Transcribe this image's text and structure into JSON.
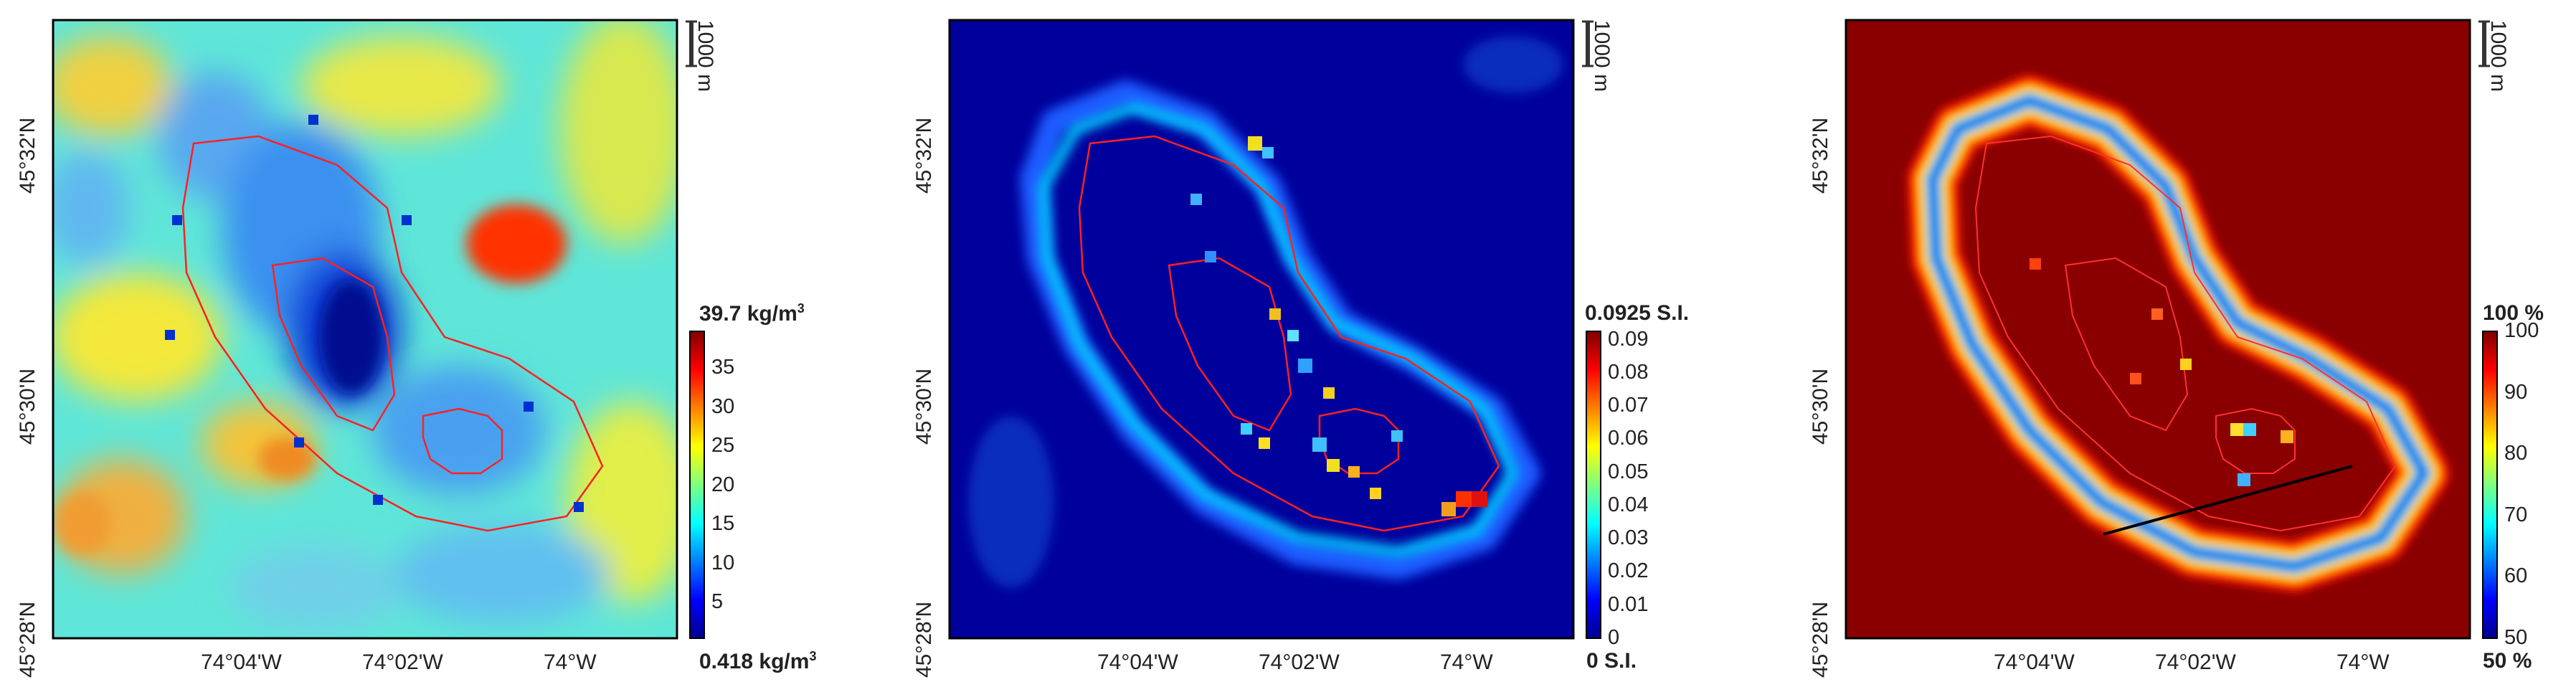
{
  "panels": [
    {
      "id": "density",
      "lat_labels": [
        "45°32'N",
        "45°30'N",
        "45°28'N"
      ],
      "lon_labels": [
        "74°04'W",
        "74°02'W",
        "74°W"
      ],
      "scale_bar": "1000 m",
      "colorbar": {
        "max_label": "39.7 kg/m",
        "max_sup": "3",
        "min_label": "0.418 kg/m",
        "min_sup": "3",
        "ticks": [
          "35",
          "30",
          "25",
          "20",
          "15",
          "10",
          "5"
        ],
        "tick_values": [
          35,
          30,
          25,
          20,
          15,
          10,
          5
        ],
        "range": [
          0.418,
          39.7
        ]
      }
    },
    {
      "id": "susceptibility",
      "lat_labels": [
        "45°32'N",
        "45°30'N",
        "45°28'N"
      ],
      "lon_labels": [
        "74°04'W",
        "74°02'W",
        "74°W"
      ],
      "scale_bar": "1000 m",
      "colorbar": {
        "max_label": "0.0925 S.I.",
        "min_label": "0 S.I.",
        "ticks": [
          "0.09",
          "0.08",
          "0.07",
          "0.06",
          "0.05",
          "0.04",
          "0.03",
          "0.02",
          "0.01",
          "0"
        ],
        "tick_values": [
          0.09,
          0.08,
          0.07,
          0.06,
          0.05,
          0.04,
          0.03,
          0.02,
          0.01,
          0
        ],
        "range": [
          0,
          0.0925
        ]
      }
    },
    {
      "id": "confidence",
      "lat_labels": [
        "45°32'N",
        "45°30'N",
        "45°28'N"
      ],
      "lon_labels": [
        "74°04'W",
        "74°02'W",
        "74°W"
      ],
      "scale_bar": "1000 m",
      "colorbar": {
        "max_label": "100 %",
        "min_label": "50 %",
        "ticks": [
          "100",
          "90",
          "80",
          "70",
          "60",
          "50"
        ],
        "tick_values": [
          100,
          90,
          80,
          70,
          60,
          50
        ],
        "range": [
          50,
          100
        ]
      }
    }
  ],
  "colors": {
    "jet_dark_blue": "#00008f",
    "jet_blue": "#0050ff",
    "jet_cyan": "#00e5ff",
    "jet_yellow": "#ffee00",
    "jet_red": "#ff2000",
    "jet_dark_red": "#800000",
    "outline_red": "#ff2020",
    "profile_line": "#000000"
  }
}
